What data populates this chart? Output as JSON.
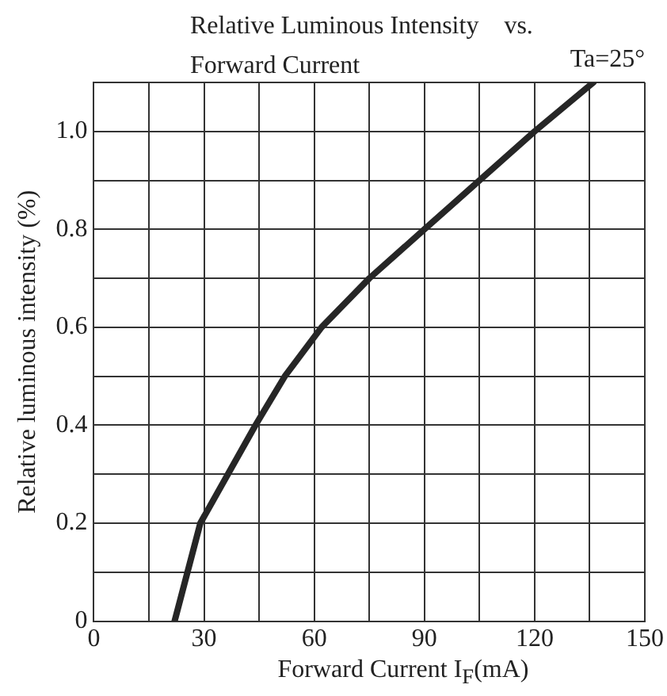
{
  "chart_data": {
    "type": "line",
    "title": "Relative Luminous Intensity    vs. Forward Current",
    "xlabel": "Forward Current   I$_{F}$(mA)",
    "ylabel": "Relative luminous intensity (%)",
    "annotations": [
      "Ta=25°"
    ],
    "x": [
      22,
      29,
      44,
      52,
      62,
      75,
      90,
      105,
      120,
      136
    ],
    "series": [
      {
        "color": "#262626",
        "values": [
          0,
          0.2,
          0.4,
          0.5,
          0.6,
          0.7,
          0.8,
          0.9,
          1.0,
          1.1
        ]
      }
    ],
    "xlim": [
      0,
      150
    ],
    "xticks": [
      0,
      {
        "value": 15,
        "label": null
      },
      30,
      {
        "value": 45,
        "label": null
      },
      60,
      {
        "value": 75,
        "label": null
      },
      90,
      {
        "value": 105,
        "label": null
      },
      120,
      {
        "value": 135,
        "label": null
      },
      150
    ],
    "ylim": [
      0,
      1.1
    ],
    "yticks": [
      0,
      {
        "value": 0.1,
        "label": null
      },
      0.2,
      {
        "value": 0.3,
        "label": null
      },
      0.4,
      {
        "value": 0.5,
        "label": null
      },
      0.6,
      {
        "value": 0.7,
        "label": null
      },
      0.8,
      {
        "value": 0.9,
        "label": null
      },
      {
        "value": 1.0,
        "label": "1.0"
      },
      {
        "value": 1.1,
        "label": null
      }
    ],
    "grid": true,
    "marker": "none",
    "line_style": "solid",
    "legend": false
  }
}
